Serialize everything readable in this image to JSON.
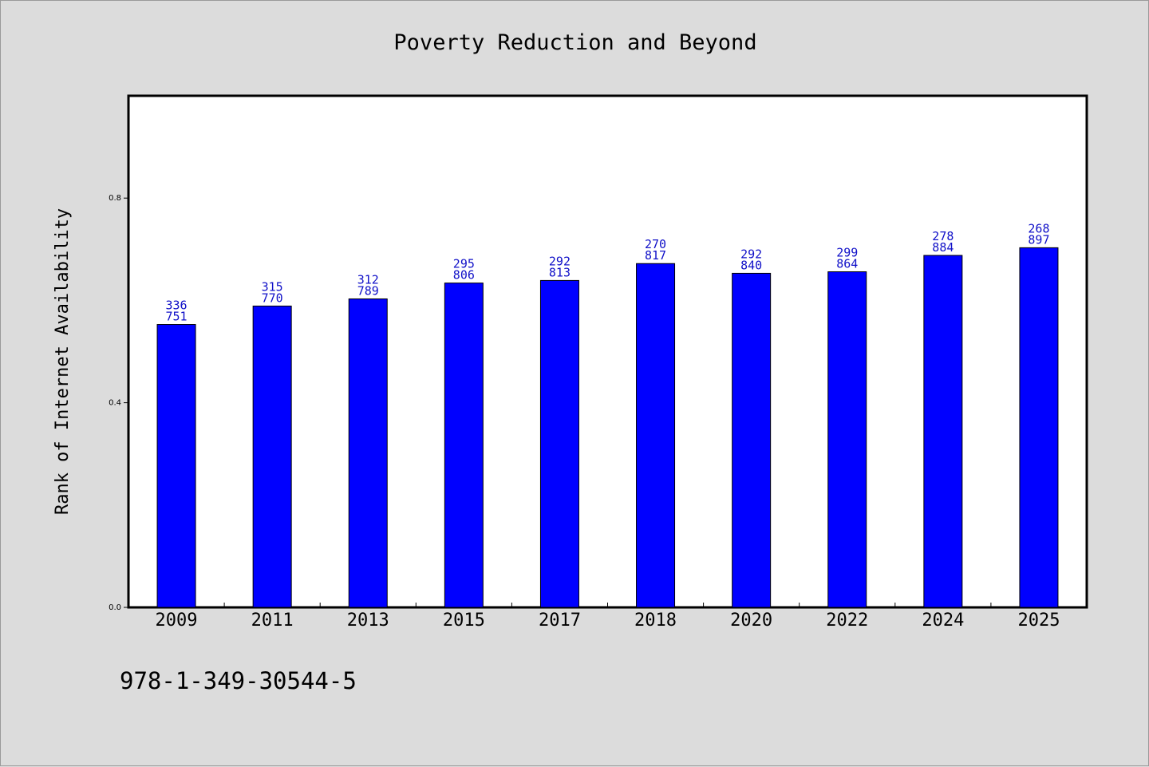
{
  "chart_data": {
    "type": "bar",
    "title": "Poverty Reduction and Beyond",
    "xlabel": "",
    "ylabel": "Rank of Internet Availability",
    "categories": [
      "2009",
      "2011",
      "2013",
      "2015",
      "2017",
      "2018",
      "2020",
      "2022",
      "2024",
      "2025"
    ],
    "values": [
      0.553,
      0.589,
      0.603,
      0.634,
      0.639,
      0.672,
      0.653,
      0.656,
      0.688,
      0.703
    ],
    "data_labels_top": [
      "336",
      "315",
      "312",
      "295",
      "292",
      "270",
      "292",
      "299",
      "278",
      "268"
    ],
    "data_labels_bottom": [
      "751",
      "770",
      "789",
      "806",
      "813",
      "817",
      "840",
      "864",
      "884",
      "897"
    ],
    "yticks": [
      "0.0",
      "0.4",
      "0.8"
    ],
    "ylim": [
      0,
      1.0
    ],
    "grid": false,
    "bar_color": "#0000ff",
    "label_color": "#1010c8"
  },
  "footer": {
    "isbn": "978-1-349-30544-5"
  }
}
